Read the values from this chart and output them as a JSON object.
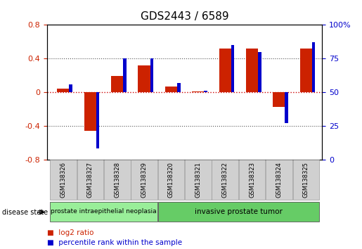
{
  "title": "GDS2443 / 6589",
  "samples": [
    "GSM138326",
    "GSM138327",
    "GSM138328",
    "GSM138329",
    "GSM138320",
    "GSM138321",
    "GSM138322",
    "GSM138323",
    "GSM138324",
    "GSM138325"
  ],
  "log2_ratio": [
    0.04,
    -0.46,
    0.19,
    0.32,
    0.07,
    0.01,
    0.52,
    0.52,
    -0.18,
    0.52
  ],
  "percentile_rank": [
    56,
    8,
    75,
    75,
    57,
    51,
    85,
    80,
    27,
    87
  ],
  "ylim_left": [
    -0.8,
    0.8
  ],
  "ylim_right": [
    0,
    100
  ],
  "yticks_left": [
    -0.8,
    -0.4,
    0.0,
    0.4,
    0.8
  ],
  "yticks_right": [
    0,
    25,
    50,
    75,
    100
  ],
  "ytick_labels_left": [
    "-0.8",
    "-0.4",
    "0",
    "0.4",
    "0.8"
  ],
  "ytick_labels_right": [
    "0",
    "25",
    "50",
    "75",
    "100%"
  ],
  "groups": [
    {
      "label": "prostate intraepithelial neoplasia",
      "start": 0,
      "end": 4,
      "color": "#99ee99"
    },
    {
      "label": "invasive prostate tumor",
      "start": 4,
      "end": 10,
      "color": "#66cc66"
    }
  ],
  "disease_state_label": "disease state",
  "legend_log2_color": "#cc2200",
  "legend_pct_color": "#0000cc",
  "bar_red_color": "#cc2200",
  "bar_blue_color": "#0000cc",
  "zero_line_color": "#cc0000",
  "bg_color": "#ffffff",
  "plot_bg": "#ffffff",
  "border_color": "#000000"
}
